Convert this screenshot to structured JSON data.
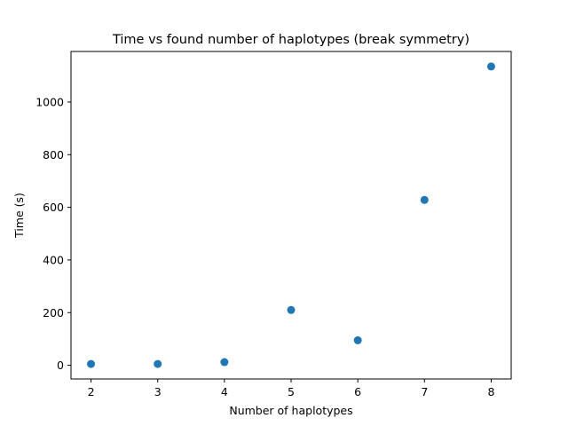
{
  "chart_data": {
    "type": "scatter",
    "title": "Time vs found number of haplotypes (break symmetry)",
    "xlabel": "Number of haplotypes",
    "ylabel": "Time (s)",
    "x": [
      2,
      3,
      4,
      5,
      6,
      7,
      8
    ],
    "y": [
      5,
      5,
      12,
      210,
      95,
      628,
      1135
    ],
    "xlim": [
      1.7,
      8.3
    ],
    "ylim": [
      -52,
      1192
    ],
    "xticks": [
      2,
      3,
      4,
      5,
      6,
      7,
      8
    ],
    "yticks": [
      0,
      200,
      400,
      600,
      800,
      1000
    ],
    "marker_color": "#1f77b4",
    "grid": false,
    "legend": "none"
  }
}
